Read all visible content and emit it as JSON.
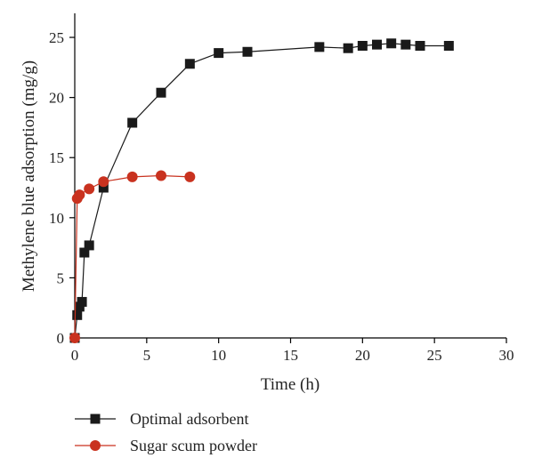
{
  "chart_data": {
    "type": "line",
    "title": "",
    "xlabel": "Time (h)",
    "ylabel": "Methylene blue adsorption (mg/g)",
    "xlim": [
      0,
      30
    ],
    "ylim": [
      0,
      27
    ],
    "xticks": [
      0,
      5,
      10,
      15,
      20,
      25,
      30
    ],
    "yticks": [
      0,
      5,
      10,
      15,
      20,
      25
    ],
    "grid": false,
    "legend_position": "bottom-left, below plot",
    "series": [
      {
        "name": "Optimal adsorbent",
        "marker": "square",
        "color": "#1a1a1a",
        "x": [
          0,
          0.17,
          0.33,
          0.5,
          0.67,
          1,
          2,
          4,
          6,
          8,
          10,
          12,
          17,
          19,
          20,
          21,
          22,
          23,
          24,
          26
        ],
        "y": [
          0,
          1.9,
          2.6,
          3.0,
          7.1,
          7.7,
          12.5,
          17.9,
          20.4,
          22.8,
          23.7,
          23.8,
          24.2,
          24.1,
          24.3,
          24.4,
          24.5,
          24.4,
          24.3,
          24.3
        ]
      },
      {
        "name": "Sugar scum powder",
        "marker": "circle",
        "color": "#c9321f",
        "x": [
          0,
          0.17,
          0.33,
          1,
          2,
          4,
          6,
          8
        ],
        "y": [
          0,
          11.6,
          11.9,
          12.4,
          13.0,
          13.4,
          13.5,
          13.4
        ]
      }
    ]
  }
}
